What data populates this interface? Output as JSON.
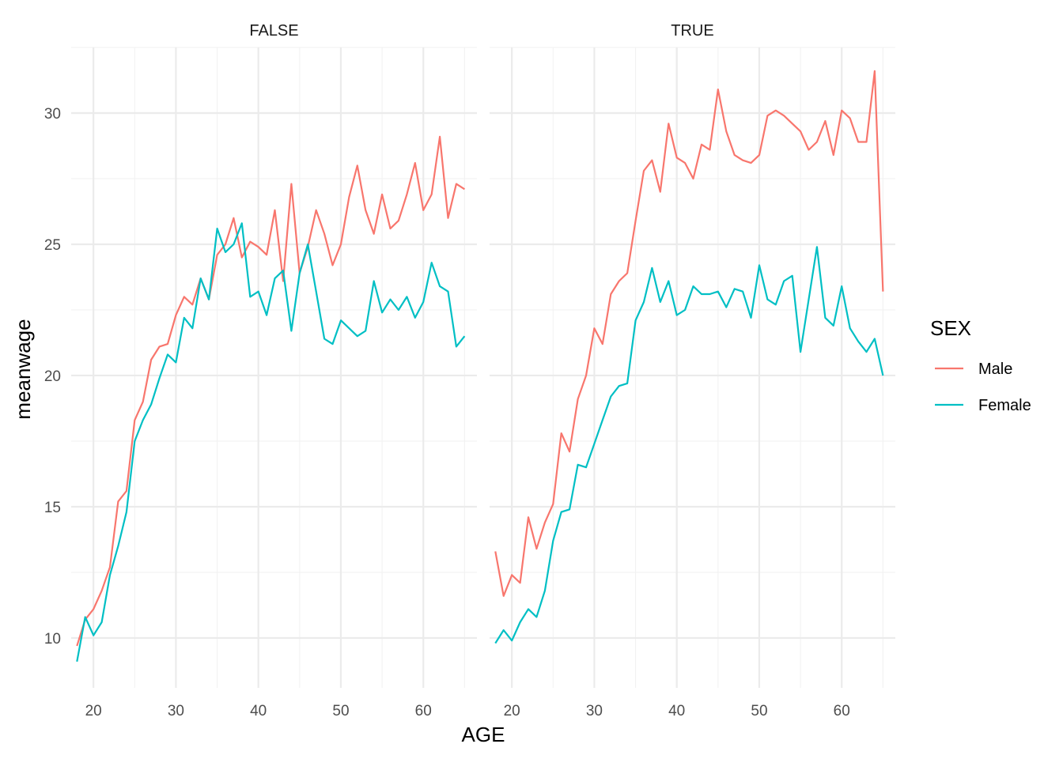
{
  "chart_data": {
    "type": "line",
    "xlabel": "AGE",
    "ylabel": "meanwage",
    "xlim": [
      17.3,
      66.5
    ],
    "ylim": [
      8.1,
      32.5
    ],
    "x_ticks": [
      20,
      30,
      40,
      50,
      60
    ],
    "y_ticks": [
      10,
      15,
      20,
      25,
      30
    ],
    "grid": true,
    "legend": {
      "title": "SEX",
      "position": "right",
      "entries": [
        {
          "name": "Male",
          "color": "#F8766D"
        },
        {
          "name": "Female",
          "color": "#00BFC4"
        }
      ]
    },
    "facets": [
      {
        "label": "FALSE",
        "series": [
          {
            "name": "Male",
            "color": "#F8766D",
            "x": [
              18,
              19,
              20,
              21,
              22,
              23,
              24,
              25,
              26,
              27,
              28,
              29,
              30,
              31,
              32,
              33,
              34,
              35,
              36,
              37,
              38,
              39,
              40,
              41,
              42,
              43,
              44,
              45,
              46,
              47,
              48,
              49,
              50,
              51,
              52,
              53,
              54,
              55,
              56,
              57,
              58,
              59,
              60,
              61,
              62,
              63,
              64,
              65
            ],
            "y": [
              9.7,
              10.7,
              11.1,
              11.8,
              12.7,
              15.2,
              15.6,
              18.3,
              19.0,
              20.6,
              21.1,
              21.2,
              22.3,
              23.0,
              22.7,
              23.7,
              22.9,
              24.6,
              25.0,
              26.0,
              24.5,
              25.1,
              24.9,
              24.6,
              26.3,
              23.6,
              27.3,
              23.9,
              24.9,
              26.3,
              25.4,
              24.2,
              25.0,
              26.8,
              28.0,
              26.3,
              25.4,
              26.9,
              25.6,
              25.9,
              26.9,
              28.1,
              26.3,
              26.9,
              29.1,
              26.0,
              27.3,
              27.1
            ]
          },
          {
            "name": "Female",
            "color": "#00BFC4",
            "x": [
              18,
              19,
              20,
              21,
              22,
              23,
              24,
              25,
              26,
              27,
              28,
              29,
              30,
              31,
              32,
              33,
              34,
              35,
              36,
              37,
              38,
              39,
              40,
              41,
              42,
              43,
              44,
              45,
              46,
              47,
              48,
              49,
              50,
              51,
              52,
              53,
              54,
              55,
              56,
              57,
              58,
              59,
              60,
              61,
              62,
              63,
              64,
              65
            ],
            "y": [
              9.1,
              10.8,
              10.1,
              10.6,
              12.4,
              13.5,
              14.8,
              17.5,
              18.3,
              18.9,
              19.9,
              20.8,
              20.5,
              22.2,
              21.8,
              23.7,
              22.9,
              25.6,
              24.7,
              25.0,
              25.8,
              23.0,
              23.2,
              22.3,
              23.7,
              24.0,
              21.7,
              23.9,
              25.0,
              23.2,
              21.4,
              21.2,
              22.1,
              21.8,
              21.5,
              21.7,
              23.6,
              22.4,
              22.9,
              22.5,
              23.0,
              22.2,
              22.8,
              24.3,
              23.4,
              23.2,
              21.1,
              21.5
            ]
          }
        ]
      },
      {
        "label": "TRUE",
        "series": [
          {
            "name": "Male",
            "color": "#F8766D",
            "x": [
              18,
              19,
              20,
              21,
              22,
              23,
              24,
              25,
              26,
              27,
              28,
              29,
              30,
              31,
              32,
              33,
              34,
              35,
              36,
              37,
              38,
              39,
              40,
              41,
              42,
              43,
              44,
              45,
              46,
              47,
              48,
              49,
              50,
              51,
              52,
              53,
              54,
              55,
              56,
              57,
              58,
              59,
              60,
              61,
              62,
              63,
              64,
              65
            ],
            "y": [
              13.3,
              11.6,
              12.4,
              12.1,
              14.6,
              13.4,
              14.4,
              15.1,
              17.8,
              17.1,
              19.1,
              20.0,
              21.8,
              21.2,
              23.1,
              23.6,
              23.9,
              25.9,
              27.8,
              28.2,
              27.0,
              29.6,
              28.3,
              28.1,
              27.5,
              28.8,
              28.6,
              30.9,
              29.3,
              28.4,
              28.2,
              28.1,
              28.4,
              29.9,
              30.1,
              29.9,
              29.6,
              29.3,
              28.6,
              28.9,
              29.7,
              28.4,
              30.1,
              29.8,
              28.9,
              28.9,
              31.6,
              23.2
            ]
          },
          {
            "name": "Female",
            "color": "#00BFC4",
            "x": [
              18,
              19,
              20,
              21,
              22,
              23,
              24,
              25,
              26,
              27,
              28,
              29,
              30,
              31,
              32,
              33,
              34,
              35,
              36,
              37,
              38,
              39,
              40,
              41,
              42,
              43,
              44,
              45,
              46,
              47,
              48,
              49,
              50,
              51,
              52,
              53,
              54,
              55,
              56,
              57,
              58,
              59,
              60,
              61,
              62,
              63,
              64,
              65
            ],
            "y": [
              9.8,
              10.3,
              9.9,
              10.6,
              11.1,
              10.8,
              11.8,
              13.7,
              14.8,
              14.9,
              16.6,
              16.5,
              17.4,
              18.3,
              19.2,
              19.6,
              19.7,
              22.1,
              22.8,
              24.1,
              22.8,
              23.6,
              22.3,
              22.5,
              23.4,
              23.1,
              23.1,
              23.2,
              22.6,
              23.3,
              23.2,
              22.2,
              24.2,
              22.9,
              22.7,
              23.6,
              23.8,
              20.9,
              22.9,
              24.9,
              22.2,
              21.9,
              23.4,
              21.8,
              21.3,
              20.9,
              21.4,
              20.0
            ]
          }
        ]
      }
    ]
  }
}
